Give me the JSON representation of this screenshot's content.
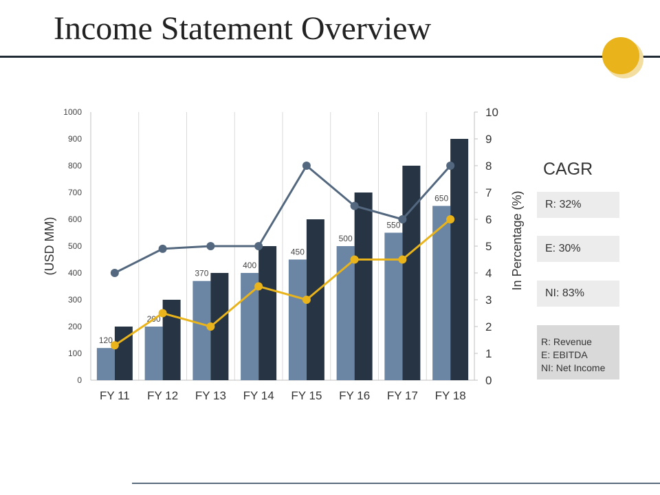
{
  "slide": {
    "title": "Income Statement Overview",
    "accent_color": "#e8b31b"
  },
  "cagr": {
    "title": "CAGR",
    "items": [
      "R: 32%",
      "E: 30%",
      "NI: 83%"
    ]
  },
  "legend": {
    "lines": [
      "R: Revenue",
      "E: EBITDA",
      "NI: Net Income"
    ]
  },
  "chart_data": {
    "type": "bar",
    "categories": [
      "FY 11",
      "FY 12",
      "FY 13",
      "FY 14",
      "FY 15",
      "FY 16",
      "FY 17",
      "FY 18"
    ],
    "ylabel": "(USD MM)",
    "y2label": "In Percentage (%)",
    "ylim": [
      0,
      1000
    ],
    "y2lim": [
      0,
      10
    ],
    "yticks": [
      0,
      100,
      200,
      300,
      400,
      500,
      600,
      700,
      800,
      900,
      1000
    ],
    "y2ticks": [
      0,
      1,
      2,
      3,
      4,
      5,
      6,
      7,
      8,
      9,
      10
    ],
    "grid": "vertical",
    "bar_series": [
      {
        "values": [
          120,
          200,
          370,
          400,
          450,
          500,
          550,
          650
        ],
        "color": "#6a86a4",
        "data_labels": true
      },
      {
        "values": [
          200,
          300,
          400,
          500,
          600,
          700,
          800,
          900
        ],
        "color": "#273444",
        "data_labels": false
      }
    ],
    "line_series": [
      {
        "axis": "right",
        "values": [
          4,
          4.9,
          5,
          5,
          8,
          6.5,
          6,
          8
        ],
        "color": "#53687f"
      },
      {
        "axis": "right",
        "values": [
          1.3,
          2.5,
          2,
          3.5,
          3,
          4.5,
          4.5,
          6
        ],
        "color": "#e8b31b"
      }
    ]
  }
}
